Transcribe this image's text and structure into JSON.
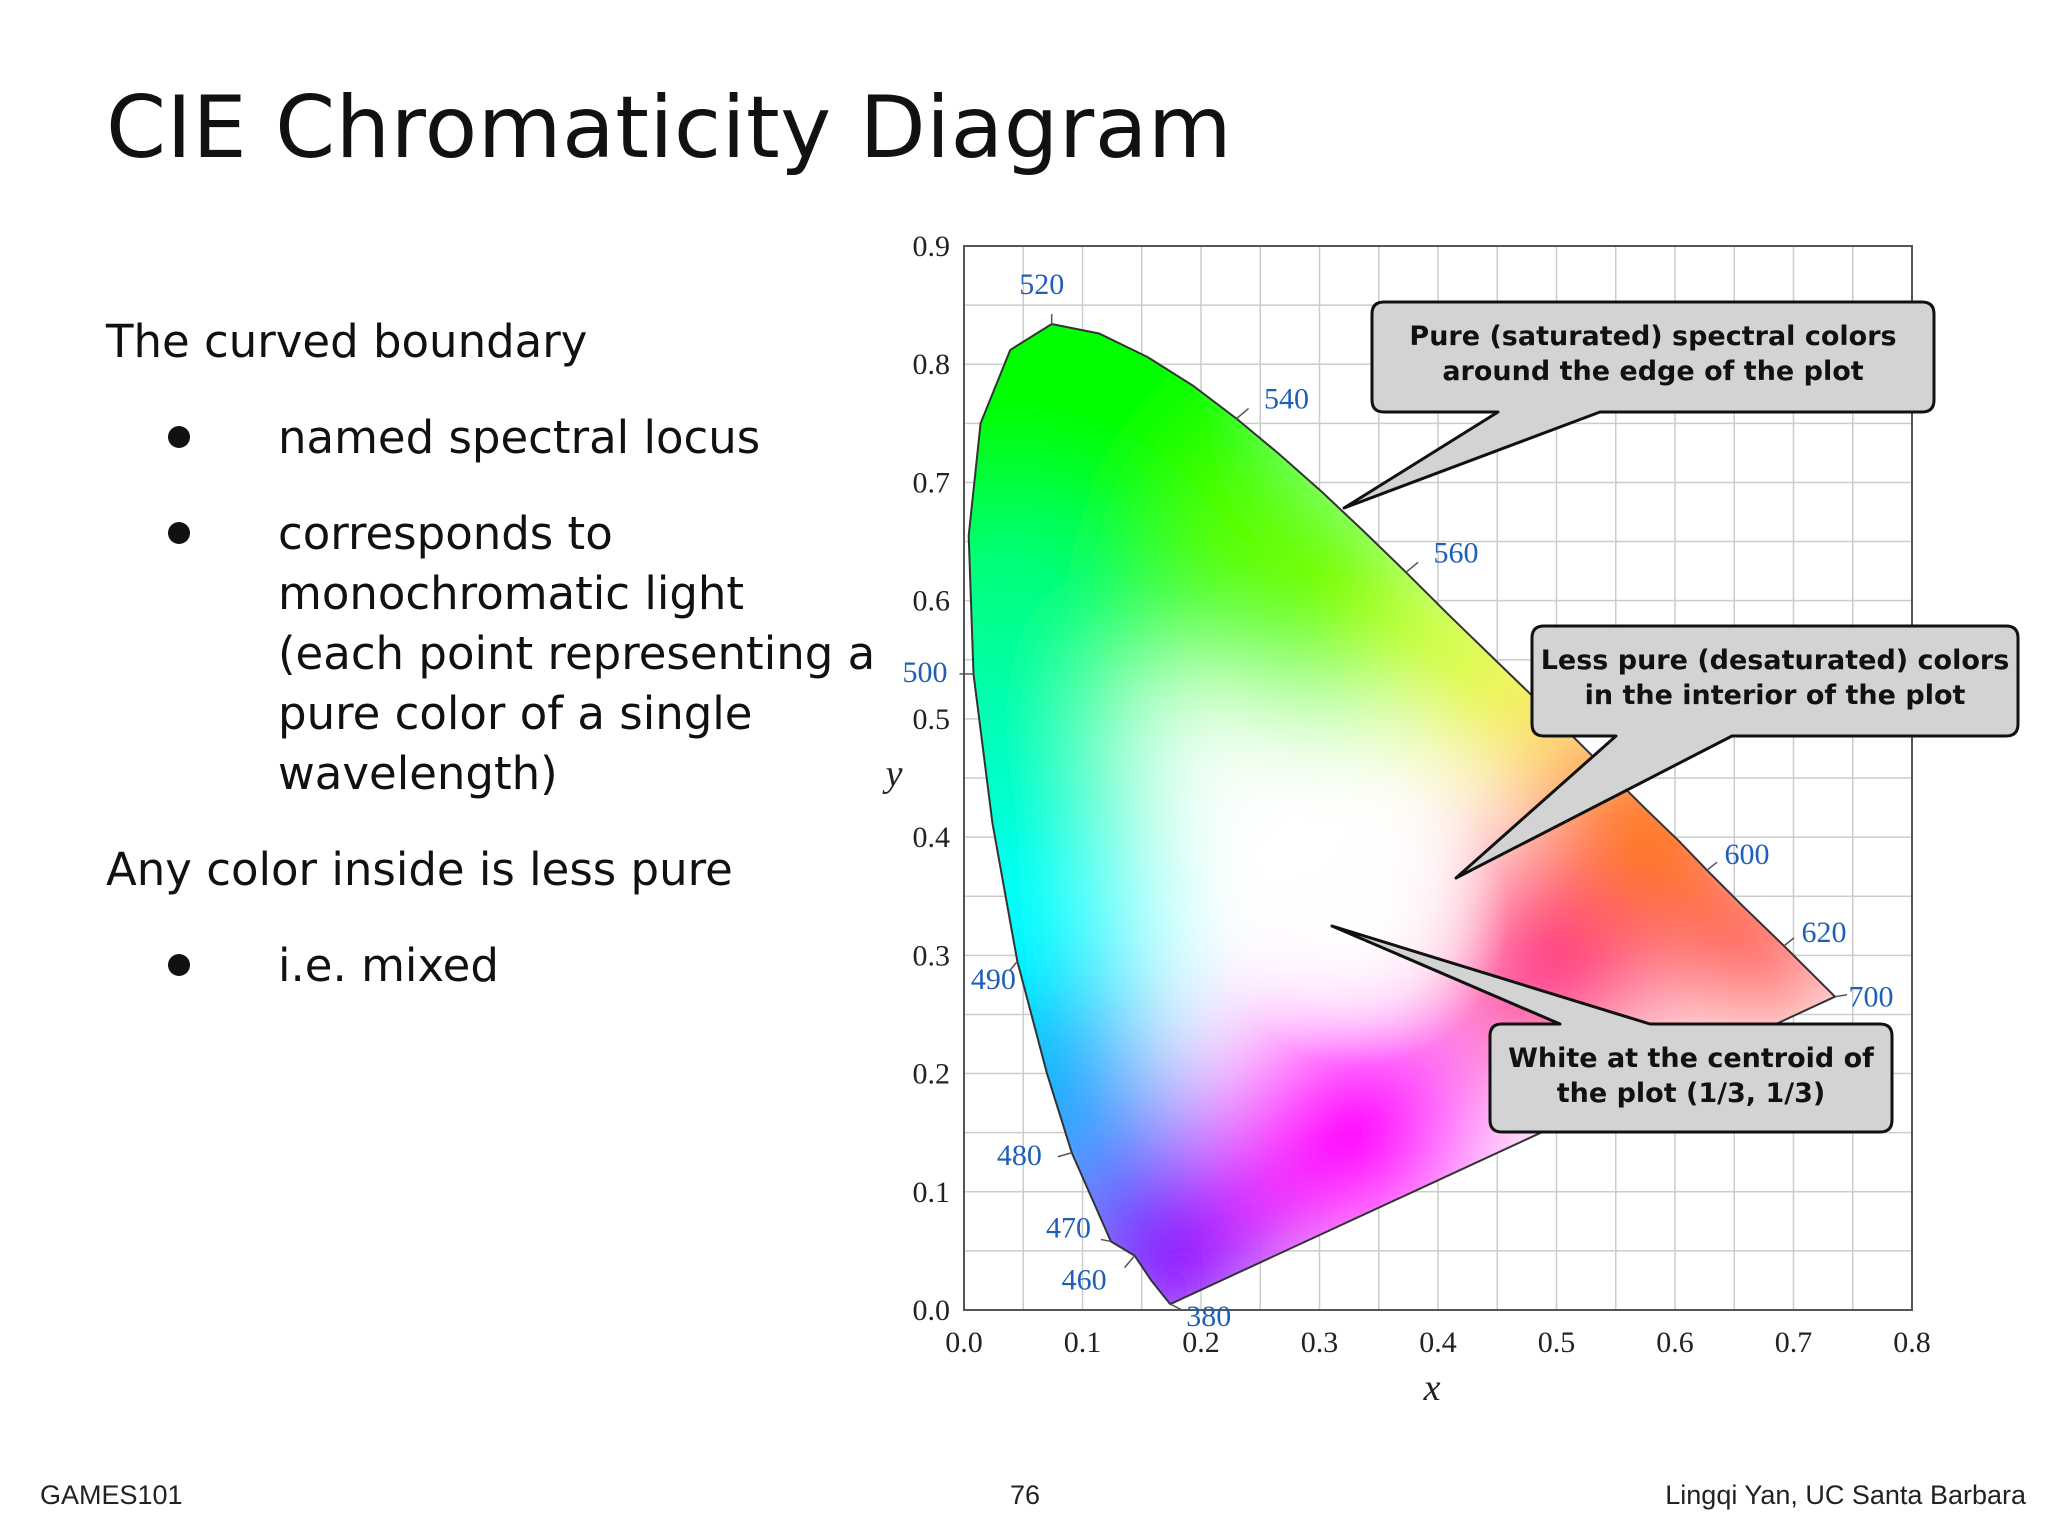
{
  "slide": {
    "title": "CIE Chromaticity Diagram",
    "footer_left": "GAMES101",
    "page_number": "76",
    "footer_right": "Lingqi Yan, UC Santa Barbara"
  },
  "text": {
    "p1": "The curved boundary",
    "b1": "named spectral locus",
    "b2": "corresponds to monochromatic light (each point representing a pure color of a single wavelength)",
    "p2": "Any color inside is less pure",
    "b3": "i.e. mixed"
  },
  "callouts": {
    "pure": [
      "Pure (saturated) spectral colors",
      "around the edge of the plot"
    ],
    "less_pure": [
      "Less pure (desaturated) colors",
      "in the interior of the plot"
    ],
    "white": [
      "White at the centroid of",
      "the plot (1/3, 1/3)"
    ]
  },
  "chart_data": {
    "type": "scatter",
    "title": "",
    "xlabel": "x",
    "ylabel": "y",
    "xlim": [
      0.0,
      0.8
    ],
    "ylim": [
      0.0,
      0.9
    ],
    "x_ticks": [
      "0.0",
      "0.1",
      "0.2",
      "0.3",
      "0.4",
      "0.5",
      "0.6",
      "0.7",
      "0.8"
    ],
    "y_ticks": [
      "0.0",
      "0.1",
      "0.2",
      "0.3",
      "0.4",
      "0.5",
      "0.6",
      "0.7",
      "0.8",
      "0.9"
    ],
    "grid": true,
    "spectral_locus": [
      [
        0.174,
        0.005
      ],
      [
        0.17,
        0.01
      ],
      [
        0.158,
        0.025
      ],
      [
        0.144,
        0.046
      ],
      [
        0.124,
        0.058
      ],
      [
        0.091,
        0.133
      ],
      [
        0.07,
        0.2
      ],
      [
        0.045,
        0.295
      ],
      [
        0.024,
        0.412
      ],
      [
        0.008,
        0.538
      ],
      [
        0.004,
        0.655
      ],
      [
        0.014,
        0.75
      ],
      [
        0.039,
        0.812
      ],
      [
        0.074,
        0.834
      ],
      [
        0.114,
        0.826
      ],
      [
        0.155,
        0.806
      ],
      [
        0.193,
        0.782
      ],
      [
        0.23,
        0.754
      ],
      [
        0.266,
        0.724
      ],
      [
        0.302,
        0.692
      ],
      [
        0.337,
        0.659
      ],
      [
        0.373,
        0.624
      ],
      [
        0.408,
        0.589
      ],
      [
        0.444,
        0.554
      ],
      [
        0.479,
        0.52
      ],
      [
        0.512,
        0.487
      ],
      [
        0.545,
        0.454
      ],
      [
        0.575,
        0.424
      ],
      [
        0.603,
        0.397
      ],
      [
        0.627,
        0.372
      ],
      [
        0.658,
        0.341
      ],
      [
        0.692,
        0.308
      ],
      [
        0.735,
        0.265
      ]
    ],
    "wavelength_labels": [
      {
        "label": "520",
        "x": 0.074,
        "y": 0.834
      },
      {
        "label": "540",
        "x": 0.23,
        "y": 0.754
      },
      {
        "label": "560",
        "x": 0.373,
        "y": 0.624
      },
      {
        "label": "500",
        "x": 0.008,
        "y": 0.538
      },
      {
        "label": "600",
        "x": 0.627,
        "y": 0.372
      },
      {
        "label": "620",
        "x": 0.692,
        "y": 0.308
      },
      {
        "label": "700",
        "x": 0.735,
        "y": 0.265
      },
      {
        "label": "490",
        "x": 0.045,
        "y": 0.295
      },
      {
        "label": "480",
        "x": 0.091,
        "y": 0.133
      },
      {
        "label": "470",
        "x": 0.124,
        "y": 0.058
      },
      {
        "label": "460",
        "x": 0.144,
        "y": 0.046
      },
      {
        "label": "380",
        "x": 0.174,
        "y": 0.005
      }
    ],
    "white_point": [
      0.333,
      0.333
    ],
    "colors": {
      "axis": "#555555",
      "grid": "#cccccc",
      "locus": "#333333",
      "wavelength_label": "#1f5fb8",
      "callout_fill": "#d3d3d3"
    }
  }
}
